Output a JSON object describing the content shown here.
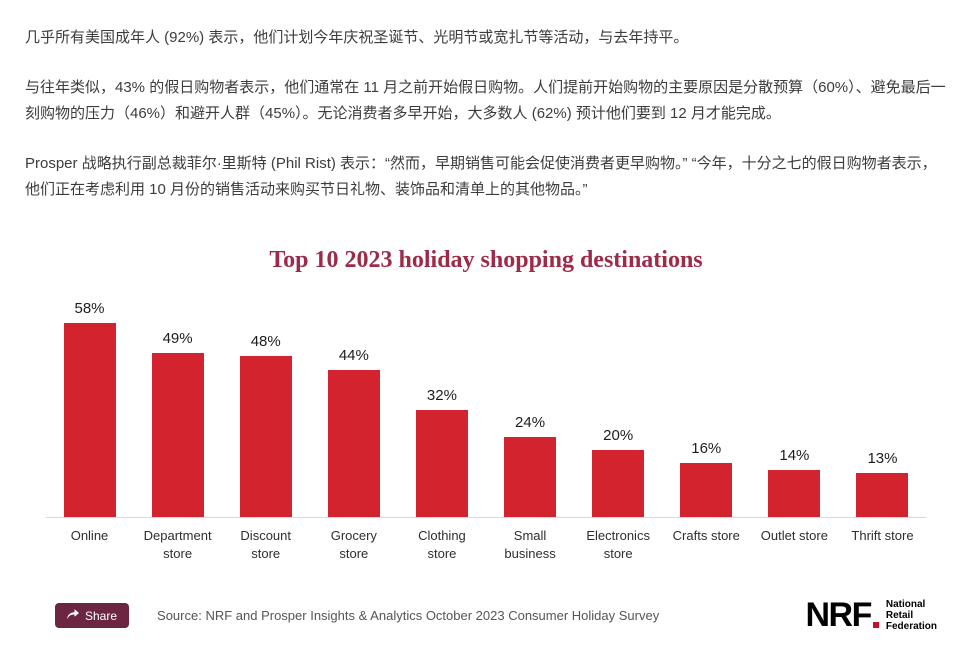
{
  "article": {
    "paragraphs": [
      "几乎所有美国成年人 (92%) 表示，他们计划今年庆祝圣诞节、光明节或宽扎节等活动，与去年持平。",
      "与往年类似，43% 的假日购物者表示，他们通常在 11 月之前开始假日购物。人们提前开始购物的主要原因是分散预算（60%）、避免最后一刻购物的压力（46%）和避开人群（45%）。无论消费者多早开始，大多数人 (62%) 预计他们要到 12 月才能完成。",
      "Prosper 战略执行副总裁菲尔·里斯特 (Phil Rist) 表示：“然而，早期销售可能会促使消费者更早购物。” “今年，十分之七的假日购物者表示，他们正在考虑利用 10 月份的销售活动来购买节日礼物、装饰品和清单上的其他物品。”"
    ]
  },
  "chart_data": {
    "type": "bar",
    "title": "Top 10 2023 holiday shopping destinations",
    "categories": [
      "Online",
      "Department store",
      "Discount store",
      "Grocery store",
      "Clothing store",
      "Small business",
      "Electronics store",
      "Crafts store",
      "Outlet store",
      "Thrift store"
    ],
    "values": [
      58,
      49,
      48,
      44,
      32,
      24,
      20,
      16,
      14,
      13
    ],
    "value_labels": [
      "58%",
      "49%",
      "48%",
      "44%",
      "32%",
      "24%",
      "20%",
      "16%",
      "14%",
      "13%"
    ],
    "unit": "%",
    "xlabel": "",
    "ylabel": "",
    "ylim": [
      0,
      60
    ],
    "gridlines": false,
    "legend": false,
    "bar_color": "#d2232f",
    "title_color": "#9e2a49"
  },
  "footer": {
    "share_label": "Share",
    "source": "Source: NRF and Prosper Insights & Analytics October 2023 Consumer Holiday Survey",
    "logo": {
      "text": "NRF",
      "tagline_lines": [
        "National",
        "Retail",
        "Federation"
      ]
    }
  },
  "colors": {
    "bar": "#d2232f",
    "chart_title": "#9e2a49",
    "share_button_bg": "#6d2642",
    "logo_red": "#c8102e"
  }
}
